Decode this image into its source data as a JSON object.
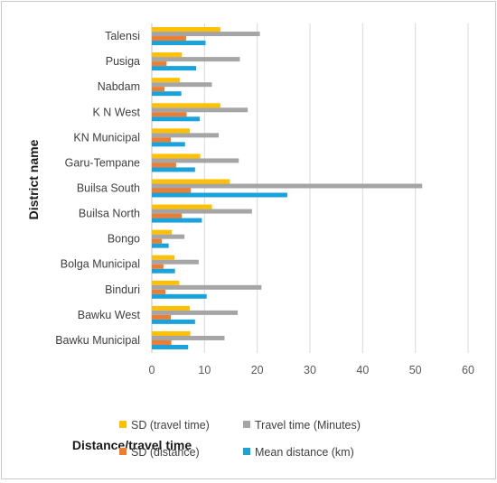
{
  "chart_data": {
    "type": "bar",
    "orientation": "horizontal",
    "categories": [
      "Talensi",
      "Pusiga",
      "Nabdam",
      "K N West",
      "KN Municipal",
      "Garu-Tempane",
      "Builsa South",
      "Builsa North",
      "Bongo",
      "Bolga Municipal",
      "Binduri",
      "Bawku West",
      "Bawku Municipal"
    ],
    "series": [
      {
        "name": "SD (travel time)",
        "color": "#ffc000",
        "values": [
          13.0,
          5.7,
          5.3,
          13.0,
          7.2,
          9.2,
          14.8,
          11.4,
          3.8,
          4.3,
          5.2,
          7.2,
          7.3
        ]
      },
      {
        "name": "Travel time (Minutes)",
        "color": "#a5a5a5",
        "values": [
          20.5,
          16.7,
          11.4,
          18.2,
          12.7,
          16.5,
          51.3,
          19.0,
          6.2,
          8.9,
          20.8,
          16.3,
          13.8
        ]
      },
      {
        "name": "SD (distance)",
        "color": "#ed7d31",
        "values": [
          6.5,
          2.8,
          2.4,
          6.6,
          3.6,
          4.6,
          7.4,
          5.7,
          1.9,
          2.2,
          2.6,
          3.6,
          3.7
        ]
      },
      {
        "name": "Mean distance (km)",
        "color": "#1aa3db",
        "values": [
          10.2,
          8.4,
          5.6,
          9.1,
          6.3,
          8.2,
          25.7,
          9.5,
          3.2,
          4.4,
          10.4,
          8.2,
          6.9
        ]
      }
    ],
    "xlim": [
      0,
      60
    ],
    "xticks": [
      0,
      10,
      20,
      30,
      40,
      50,
      60
    ],
    "xlabel": "Distance/travel time",
    "ylabel": "District name",
    "grid": "vertical",
    "legend_position": "bottom"
  }
}
